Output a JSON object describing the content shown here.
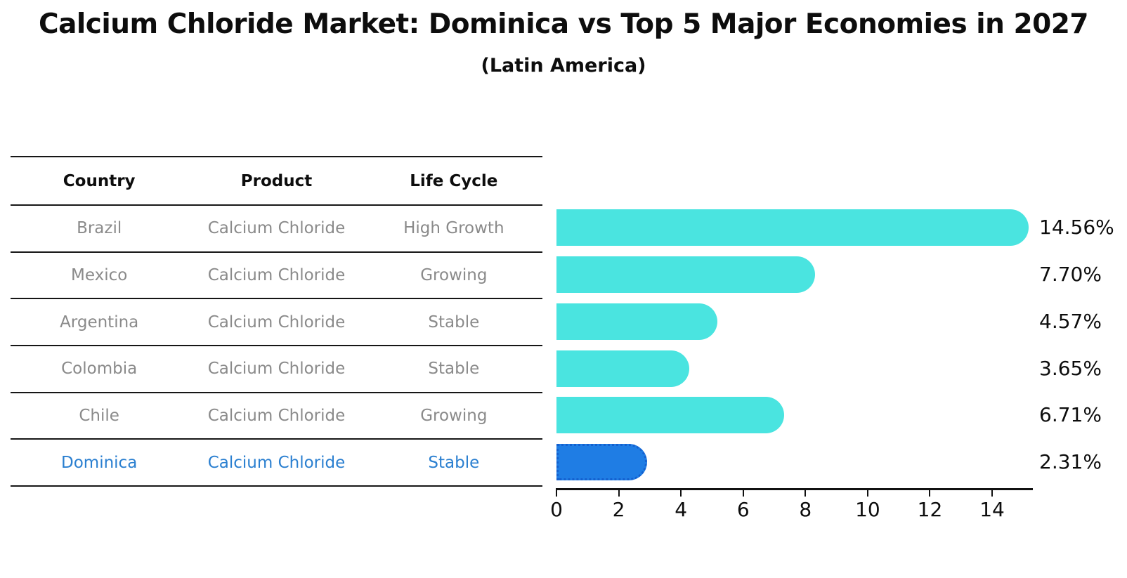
{
  "chart_data": {
    "type": "bar",
    "orientation": "horizontal",
    "title": "Calcium Chloride Market: Dominica vs Top 5 Major Economies in 2027",
    "subtitle": "(Latin America)",
    "categories": [
      "Brazil",
      "Mexico",
      "Argentina",
      "Colombia",
      "Chile",
      "Dominica"
    ],
    "values": [
      14.56,
      7.7,
      4.57,
      3.65,
      6.71,
      2.31
    ],
    "value_labels": [
      "14.56%",
      "7.70%",
      "4.57%",
      "3.65%",
      "6.71%",
      "2.31%"
    ],
    "x_ticks": [
      0,
      2,
      4,
      6,
      8,
      10,
      12,
      14
    ],
    "xlim": [
      0,
      15.3
    ],
    "highlight_index": 5,
    "bar_color": "#4ae4e0",
    "highlight_bar_color": "#1f7de4",
    "highlight_bar_border_color": "#1460cf",
    "grid": false,
    "legend_position": "none"
  },
  "table": {
    "columns": [
      "Country",
      "Product",
      "Life Cycle"
    ],
    "rows": [
      {
        "country": "Brazil",
        "product": "Calcium Chloride",
        "life_cycle": "High Growth",
        "highlighted": false
      },
      {
        "country": "Mexico",
        "product": "Calcium Chloride",
        "life_cycle": "Growing",
        "highlighted": false
      },
      {
        "country": "Argentina",
        "product": "Calcium Chloride",
        "life_cycle": "Stable",
        "highlighted": false
      },
      {
        "country": "Colombia",
        "product": "Calcium Chloride",
        "life_cycle": "Stable",
        "highlighted": false
      },
      {
        "country": "Chile",
        "product": "Calcium Chloride",
        "life_cycle": "Growing",
        "highlighted": false
      },
      {
        "country": "Dominica",
        "product": "Calcium Chloride",
        "life_cycle": "Stable",
        "highlighted": true
      }
    ]
  },
  "colors": {
    "background": "#ffffff",
    "text_primary": "#0d0d0d",
    "table_text": "#8a8a8a",
    "highlight_text": "#2a7fd0",
    "axis": "#111111"
  }
}
